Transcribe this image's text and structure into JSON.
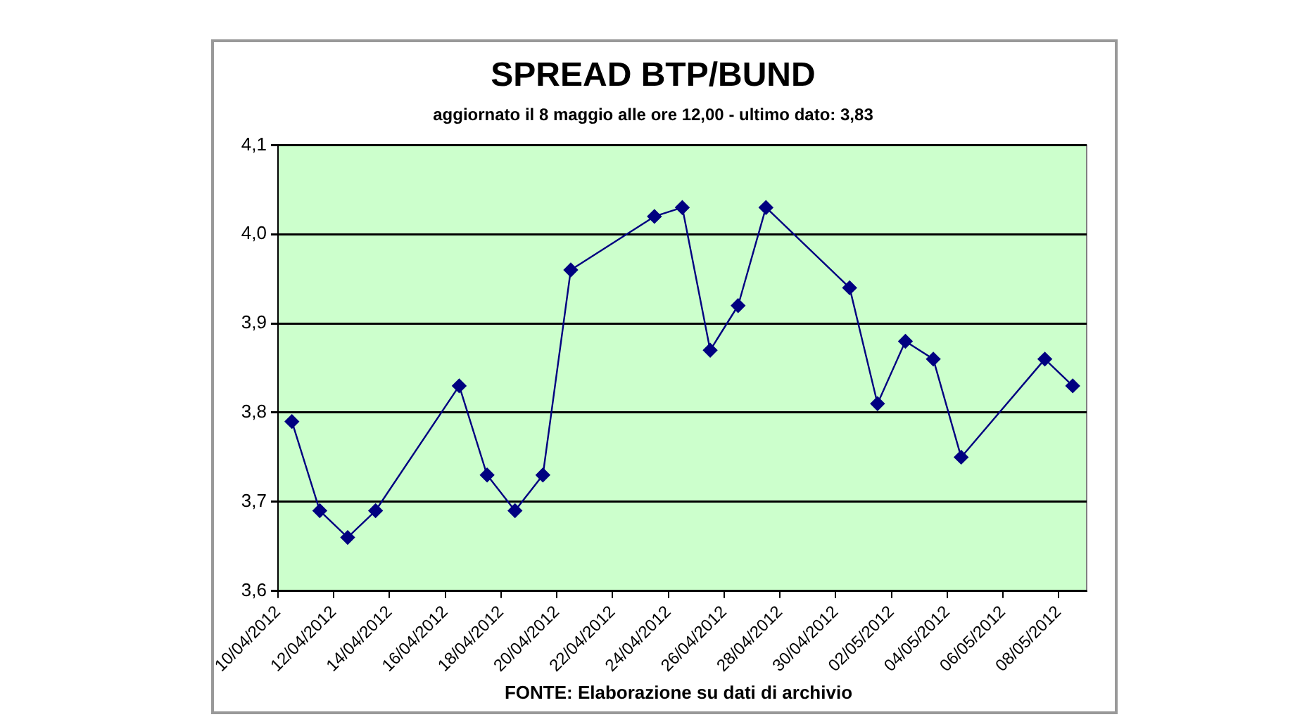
{
  "chart_data": {
    "type": "line",
    "title": "SPREAD BTP/BUND",
    "subtitle": "aggiornato il 8 maggio alle ore 12,00 - ultimo dato: 3,83",
    "annotations": [
      "FONTE: Elaborazione su dati di archivio"
    ],
    "x": [
      "2012-04-10T12:00",
      "2012-04-11T12:00",
      "2012-04-12T12:00",
      "2012-04-13T12:00",
      "2012-04-16T12:00",
      "2012-04-17T12:00",
      "2012-04-18T12:00",
      "2012-04-19T12:00",
      "2012-04-20T12:00",
      "2012-04-23T12:00",
      "2012-04-24T12:00",
      "2012-04-25T12:00",
      "2012-04-26T12:00",
      "2012-04-27T12:00",
      "2012-04-30T12:00",
      "2012-05-01T12:00",
      "2012-05-02T12:00",
      "2012-05-03T12:00",
      "2012-05-04T12:00",
      "2012-05-07T12:00",
      "2012-05-08T12:00"
    ],
    "series": [
      {
        "color": "#000080",
        "values": [
          3.79,
          3.69,
          3.66,
          3.69,
          3.83,
          3.73,
          3.69,
          3.73,
          3.96,
          4.02,
          4.03,
          3.87,
          3.92,
          4.03,
          3.94,
          3.81,
          3.88,
          3.86,
          3.75,
          3.86,
          3.83
        ]
      }
    ],
    "xlim": [
      "2012-04-10",
      "2012-05-09"
    ],
    "xticks": [
      {
        "value": "2012-04-10",
        "label": "10/04/2012"
      },
      {
        "value": "2012-04-12",
        "label": "12/04/2012"
      },
      {
        "value": "2012-04-14",
        "label": "14/04/2012"
      },
      {
        "value": "2012-04-16",
        "label": "16/04/2012"
      },
      {
        "value": "2012-04-18",
        "label": "18/04/2012"
      },
      {
        "value": "2012-04-20",
        "label": "20/04/2012"
      },
      {
        "value": "2012-04-22",
        "label": "22/04/2012"
      },
      {
        "value": "2012-04-24",
        "label": "24/04/2012"
      },
      {
        "value": "2012-04-26",
        "label": "26/04/2012"
      },
      {
        "value": "2012-04-28",
        "label": "28/04/2012"
      },
      {
        "value": "2012-04-30",
        "label": "30/04/2012"
      },
      {
        "value": "2012-05-02",
        "label": "02/05/2012"
      },
      {
        "value": "2012-05-04",
        "label": "04/05/2012"
      },
      {
        "value": "2012-05-06",
        "label": "06/05/2012"
      },
      {
        "value": "2012-05-08",
        "label": "08/05/2012"
      }
    ],
    "ylim": [
      3.6,
      4.1
    ],
    "yticks": [
      {
        "value": 3.6,
        "label": "3,6"
      },
      {
        "value": 3.7,
        "label": "3,7"
      },
      {
        "value": 3.8,
        "label": "3,8"
      },
      {
        "value": 3.9,
        "label": "3,9"
      },
      {
        "value": 4.0,
        "label": "4,0"
      },
      {
        "value": 4.1,
        "label": "4,1"
      }
    ],
    "grid": "y",
    "legend": false,
    "marker": "diamond",
    "line_style": "solid"
  }
}
